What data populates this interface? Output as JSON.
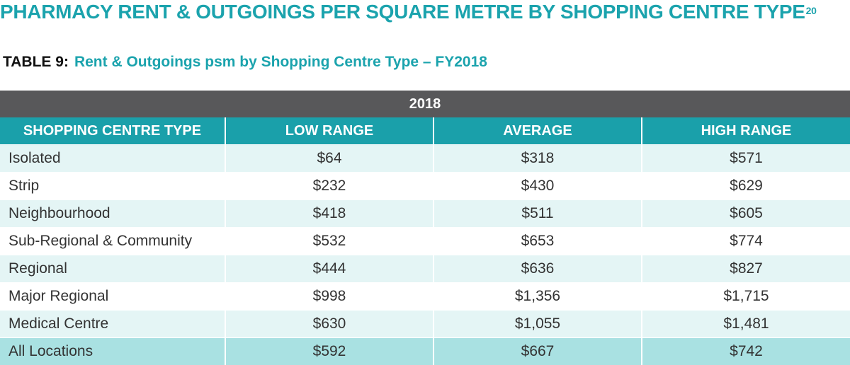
{
  "page": {
    "title": "PHARMACY RENT & OUTGOINGS PER SQUARE METRE BY SHOPPING CENTRE TYPE",
    "title_footnote": "20"
  },
  "table": {
    "label": "TABLE 9:",
    "caption": "Rent & Outgoings psm by Shopping Centre Type – FY2018",
    "year_header": "2018",
    "columns": [
      "SHOPPING CENTRE TYPE",
      "LOW RANGE",
      "AVERAGE",
      "HIGH RANGE"
    ],
    "rows": [
      [
        "Isolated",
        "$64",
        "$318",
        "$571"
      ],
      [
        "Strip",
        "$232",
        "$430",
        "$629"
      ],
      [
        "Neighbourhood",
        "$418",
        "$511",
        "$605"
      ],
      [
        "Sub-Regional & Community",
        "$532",
        "$653",
        "$774"
      ],
      [
        "Regional",
        "$444",
        "$636",
        "$827"
      ],
      [
        "Major Regional",
        "$998",
        "$1,356",
        "$1,715"
      ],
      [
        "Medical Centre",
        "$630",
        "$1,055",
        "$1,481"
      ],
      [
        "All Locations",
        "$592",
        "$667",
        "$742"
      ]
    ]
  },
  "colors": {
    "teal_title": "#1ba3ad",
    "header_teal": "#1aa0aa",
    "year_bar": "#58585a",
    "row_tint": "#e4f5f5",
    "total_row": "#a9e1e2"
  }
}
